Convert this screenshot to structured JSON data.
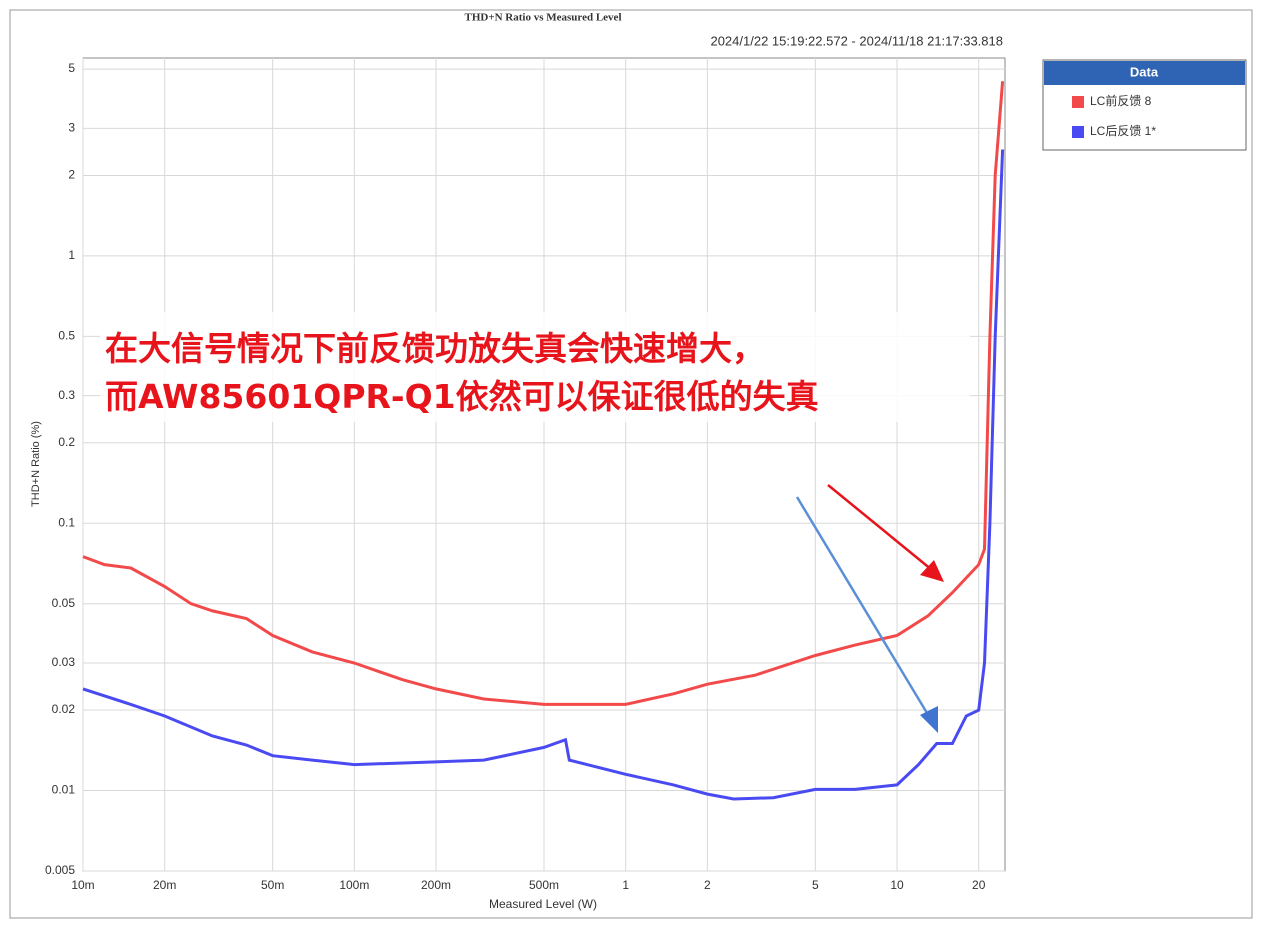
{
  "chart_data": {
    "type": "line",
    "title": "THD+N Ratio vs Measured Level",
    "subtitle": "2024/1/22 15:19:22.572 - 2024/11/18 21:17:33.818",
    "x_label": "Measured Level (W)",
    "y_label": "THD+N Ratio (%)",
    "annotation": [
      "在大信号情况下前反馈功放失真会快速增大，",
      "而AW85601QPR-Q1依然可以保证很低的失真"
    ],
    "legend_title": "Data",
    "xscale": "log",
    "yscale": "log",
    "grid": true,
    "xlim": [
      0.01,
      25
    ],
    "ylim": [
      0.005,
      5.5
    ],
    "xticks": [
      {
        "value": 0.01,
        "label": "10m"
      },
      {
        "value": 0.02,
        "label": "20m"
      },
      {
        "value": 0.05,
        "label": "50m"
      },
      {
        "value": 0.1,
        "label": "100m"
      },
      {
        "value": 0.2,
        "label": "200m"
      },
      {
        "value": 0.5,
        "label": "500m"
      },
      1,
      2,
      5,
      10,
      20
    ],
    "yticks": [
      0.005,
      0.01,
      0.02,
      0.03,
      0.05,
      0.1,
      0.2,
      0.3,
      0.5,
      1,
      2,
      3,
      5
    ],
    "series": [
      {
        "name": "LC前反馈 8",
        "color": "#f24a4a",
        "x": [
          0.01,
          0.012,
          0.015,
          0.02,
          0.025,
          0.03,
          0.04,
          0.05,
          0.07,
          0.1,
          0.15,
          0.2,
          0.3,
          0.5,
          0.7,
          1,
          1.5,
          2,
          3,
          5,
          7,
          10,
          13,
          16,
          20,
          21,
          22,
          23,
          24.5
        ],
        "values": [
          0.075,
          0.07,
          0.068,
          0.058,
          0.05,
          0.047,
          0.044,
          0.038,
          0.033,
          0.03,
          0.026,
          0.024,
          0.022,
          0.021,
          0.021,
          0.021,
          0.023,
          0.025,
          0.027,
          0.032,
          0.035,
          0.038,
          0.045,
          0.055,
          0.07,
          0.08,
          0.5,
          2,
          4.5
        ]
      },
      {
        "name": "LC后反馈 1*",
        "color": "#4a4af2",
        "x": [
          0.01,
          0.015,
          0.02,
          0.03,
          0.04,
          0.05,
          0.07,
          0.1,
          0.2,
          0.3,
          0.5,
          0.6,
          0.62,
          1,
          1.5,
          2,
          2.5,
          3.5,
          5,
          7,
          10,
          12,
          14,
          16,
          18,
          20,
          21,
          22,
          23,
          24.5
        ],
        "values": [
          0.024,
          0.021,
          0.019,
          0.016,
          0.0148,
          0.0135,
          0.013,
          0.0125,
          0.0128,
          0.013,
          0.0145,
          0.0155,
          0.013,
          0.0115,
          0.0105,
          0.0097,
          0.0093,
          0.0094,
          0.0101,
          0.0101,
          0.0105,
          0.0125,
          0.015,
          0.015,
          0.019,
          0.02,
          0.03,
          0.1,
          0.5,
          2.5
        ]
      }
    ]
  }
}
